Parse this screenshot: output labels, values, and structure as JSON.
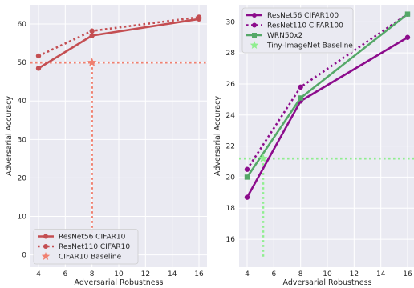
{
  "chart_data": [
    {
      "type": "line",
      "xlabel": "Adversarial Robustness",
      "ylabel": "Adversarial Accuracy",
      "xlim": [
        3.4,
        16.6
      ],
      "ylim": [
        -3.2,
        65
      ],
      "xticks": [
        4,
        6,
        8,
        10,
        12,
        14,
        16
      ],
      "yticks": [
        0,
        10,
        20,
        30,
        40,
        50,
        60
      ],
      "grid": true,
      "legend": "bottom-left",
      "series": [
        {
          "name": "ResNet56 CIFAR10",
          "style": "solid",
          "marker": "circle",
          "color": "#c44e52",
          "x": [
            4,
            8,
            16
          ],
          "y": [
            48.5,
            57.0,
            61.3
          ]
        },
        {
          "name": "ResNet110 CIFAR10",
          "style": "dotted",
          "marker": "circle",
          "color": "#c44e52",
          "x": [
            4,
            8,
            16
          ],
          "y": [
            51.7,
            58.2,
            61.8
          ]
        }
      ],
      "baseline": {
        "name": "CIFAR10 Baseline",
        "marker": "star",
        "color": "#f08070",
        "x": 8,
        "y": 50
      }
    },
    {
      "type": "line",
      "xlabel": "Adversarial Robustness",
      "ylabel": "Adversarial Accuracy",
      "xlim": [
        3.4,
        16.6
      ],
      "ylim": [
        14.2,
        31.1
      ],
      "xticks": [
        4,
        6,
        8,
        10,
        12,
        14,
        16
      ],
      "yticks": [
        16,
        18,
        20,
        22,
        24,
        26,
        28,
        30
      ],
      "grid": true,
      "legend": "top-left",
      "series": [
        {
          "name": "ResNet56 CIFAR100",
          "style": "solid",
          "marker": "circle",
          "color": "#8c0c8c",
          "x": [
            4,
            8,
            16
          ],
          "y": [
            18.7,
            24.9,
            29.0
          ]
        },
        {
          "name": "ResNet110 CIFAR100",
          "style": "dotted",
          "marker": "circle",
          "color": "#8c0c8c",
          "x": [
            4,
            8,
            16
          ],
          "y": [
            20.5,
            25.8,
            30.5
          ]
        },
        {
          "name": "WRN50x2",
          "style": "solid",
          "marker": "square",
          "color": "#55a868",
          "x": [
            4,
            8,
            16
          ],
          "y": [
            20.0,
            25.1,
            30.5
          ]
        }
      ],
      "baseline": {
        "name": "Tiny-ImageNet Baseline",
        "marker": "star",
        "color": "#90ee90",
        "x": 5.2,
        "y": 21.2
      }
    }
  ]
}
